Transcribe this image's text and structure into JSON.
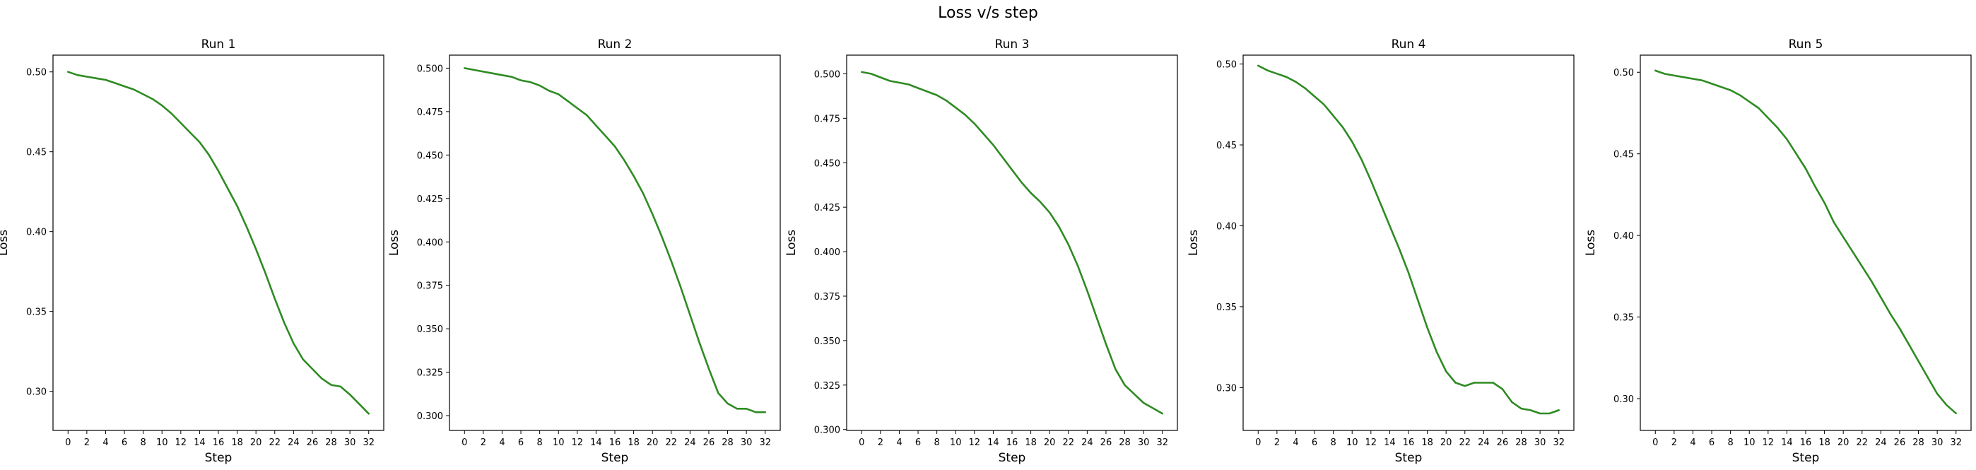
{
  "figure": {
    "title": "Loss v/s step"
  },
  "chart_data": [
    {
      "type": "line",
      "title": "Run 1",
      "xlabel": "Step",
      "ylabel": "Loss",
      "xlim": [
        -1.6,
        33.6
      ],
      "ylim": [
        0.2755,
        0.5105
      ],
      "xticks": [
        0,
        2,
        4,
        6,
        8,
        10,
        12,
        14,
        16,
        18,
        20,
        22,
        24,
        26,
        28,
        30,
        32
      ],
      "yticks": [
        0.3,
        0.35,
        0.4,
        0.45,
        0.5
      ],
      "ytick_labels": [
        "0.30",
        "0.35",
        "0.40",
        "0.45",
        "0.50"
      ],
      "line_color": "#2e8b22",
      "series": [
        {
          "x": [
            0,
            1,
            2,
            3,
            4,
            5,
            6,
            7,
            8,
            9,
            10,
            11,
            12,
            13,
            14,
            15,
            16,
            17,
            18,
            19,
            20,
            21,
            22,
            23,
            24,
            25,
            26,
            27,
            28,
            29,
            30,
            31,
            32
          ],
          "y": [
            0.5,
            0.498,
            0.497,
            0.496,
            0.495,
            0.493,
            0.491,
            0.489,
            0.486,
            0.483,
            0.479,
            0.474,
            0.468,
            0.462,
            0.456,
            0.448,
            0.438,
            0.427,
            0.416,
            0.403,
            0.389,
            0.374,
            0.358,
            0.343,
            0.33,
            0.32,
            0.314,
            0.308,
            0.304,
            0.303,
            0.298,
            0.292,
            0.286
          ]
        }
      ]
    },
    {
      "type": "line",
      "title": "Run 2",
      "xlabel": "Step",
      "ylabel": "Loss",
      "xlim": [
        -1.6,
        33.6
      ],
      "ylim": [
        0.2915,
        0.5075
      ],
      "xticks": [
        0,
        2,
        4,
        6,
        8,
        10,
        12,
        14,
        16,
        18,
        20,
        22,
        24,
        26,
        28,
        30,
        32
      ],
      "yticks": [
        0.3,
        0.325,
        0.35,
        0.375,
        0.4,
        0.425,
        0.45,
        0.475,
        0.5
      ],
      "ytick_labels": [
        "0.300",
        "0.325",
        "0.350",
        "0.375",
        "0.400",
        "0.425",
        "0.450",
        "0.475",
        "0.500"
      ],
      "line_color": "#2e8b22",
      "series": [
        {
          "x": [
            0,
            1,
            2,
            3,
            4,
            5,
            6,
            7,
            8,
            9,
            10,
            11,
            12,
            13,
            14,
            15,
            16,
            17,
            18,
            19,
            20,
            21,
            22,
            23,
            24,
            25,
            26,
            27,
            28,
            29,
            30,
            31,
            32
          ],
          "y": [
            0.5,
            0.499,
            0.498,
            0.497,
            0.496,
            0.495,
            0.493,
            0.492,
            0.49,
            0.487,
            0.485,
            0.481,
            0.477,
            0.473,
            0.467,
            0.461,
            0.455,
            0.447,
            0.438,
            0.428,
            0.416,
            0.403,
            0.389,
            0.374,
            0.358,
            0.342,
            0.327,
            0.313,
            0.307,
            0.304,
            0.304,
            0.302,
            0.302
          ]
        }
      ]
    },
    {
      "type": "line",
      "title": "Run 3",
      "xlabel": "Step",
      "ylabel": "Loss",
      "xlim": [
        -1.6,
        33.6
      ],
      "ylim": [
        0.2995,
        0.5105
      ],
      "xticks": [
        0,
        2,
        4,
        6,
        8,
        10,
        12,
        14,
        16,
        18,
        20,
        22,
        24,
        26,
        28,
        30,
        32
      ],
      "yticks": [
        0.3,
        0.325,
        0.35,
        0.375,
        0.4,
        0.425,
        0.45,
        0.475,
        0.5
      ],
      "ytick_labels": [
        "0.300",
        "0.325",
        "0.350",
        "0.375",
        "0.400",
        "0.425",
        "0.450",
        "0.475",
        "0.500"
      ],
      "line_color": "#2e8b22",
      "series": [
        {
          "x": [
            0,
            1,
            2,
            3,
            4,
            5,
            6,
            7,
            8,
            9,
            10,
            11,
            12,
            13,
            14,
            15,
            16,
            17,
            18,
            19,
            20,
            21,
            22,
            23,
            24,
            25,
            26,
            27,
            28,
            29,
            30,
            31,
            32
          ],
          "y": [
            0.501,
            0.5,
            0.498,
            0.496,
            0.495,
            0.494,
            0.492,
            0.49,
            0.488,
            0.485,
            0.481,
            0.477,
            0.472,
            0.466,
            0.46,
            0.453,
            0.446,
            0.439,
            0.433,
            0.428,
            0.422,
            0.414,
            0.404,
            0.392,
            0.378,
            0.363,
            0.348,
            0.334,
            0.325,
            0.32,
            0.315,
            0.312,
            0.309
          ]
        }
      ]
    },
    {
      "type": "line",
      "title": "Run 4",
      "xlabel": "Step",
      "ylabel": "Loss",
      "xlim": [
        -1.6,
        33.6
      ],
      "ylim": [
        0.2735,
        0.5055
      ],
      "xticks": [
        0,
        2,
        4,
        6,
        8,
        10,
        12,
        14,
        16,
        18,
        20,
        22,
        24,
        26,
        28,
        30,
        32
      ],
      "yticks": [
        0.3,
        0.35,
        0.4,
        0.45,
        0.5
      ],
      "ytick_labels": [
        "0.30",
        "0.35",
        "0.40",
        "0.45",
        "0.50"
      ],
      "line_color": "#2e8b22",
      "series": [
        {
          "x": [
            0,
            1,
            2,
            3,
            4,
            5,
            6,
            7,
            8,
            9,
            10,
            11,
            12,
            13,
            14,
            15,
            16,
            17,
            18,
            19,
            20,
            21,
            22,
            23,
            24,
            25,
            26,
            27,
            28,
            29,
            30,
            31,
            32
          ],
          "y": [
            0.499,
            0.496,
            0.494,
            0.492,
            0.489,
            0.485,
            0.48,
            0.475,
            0.468,
            0.461,
            0.452,
            0.441,
            0.428,
            0.414,
            0.4,
            0.386,
            0.371,
            0.354,
            0.337,
            0.322,
            0.31,
            0.303,
            0.301,
            0.303,
            0.303,
            0.303,
            0.299,
            0.291,
            0.287,
            0.286,
            0.284,
            0.284,
            0.286
          ]
        }
      ]
    },
    {
      "type": "line",
      "title": "Run 5",
      "xlabel": "Step",
      "ylabel": "Loss",
      "xlim": [
        -1.6,
        33.6
      ],
      "ylim": [
        0.2805,
        0.5105
      ],
      "xticks": [
        0,
        2,
        4,
        6,
        8,
        10,
        12,
        14,
        16,
        18,
        20,
        22,
        24,
        26,
        28,
        30,
        32
      ],
      "yticks": [
        0.3,
        0.35,
        0.4,
        0.45,
        0.5
      ],
      "ytick_labels": [
        "0.30",
        "0.35",
        "0.40",
        "0.45",
        "0.50"
      ],
      "line_color": "#2e8b22",
      "series": [
        {
          "x": [
            0,
            1,
            2,
            3,
            4,
            5,
            6,
            7,
            8,
            9,
            10,
            11,
            12,
            13,
            14,
            15,
            16,
            17,
            18,
            19,
            20,
            21,
            22,
            23,
            24,
            25,
            26,
            27,
            28,
            29,
            30,
            31,
            32
          ],
          "y": [
            0.501,
            0.499,
            0.498,
            0.497,
            0.496,
            0.495,
            0.493,
            0.491,
            0.489,
            0.486,
            0.482,
            0.478,
            0.472,
            0.466,
            0.459,
            0.45,
            0.441,
            0.43,
            0.42,
            0.408,
            0.399,
            0.39,
            0.381,
            0.372,
            0.362,
            0.352,
            0.343,
            0.333,
            0.323,
            0.313,
            0.303,
            0.296,
            0.291
          ]
        }
      ]
    }
  ]
}
